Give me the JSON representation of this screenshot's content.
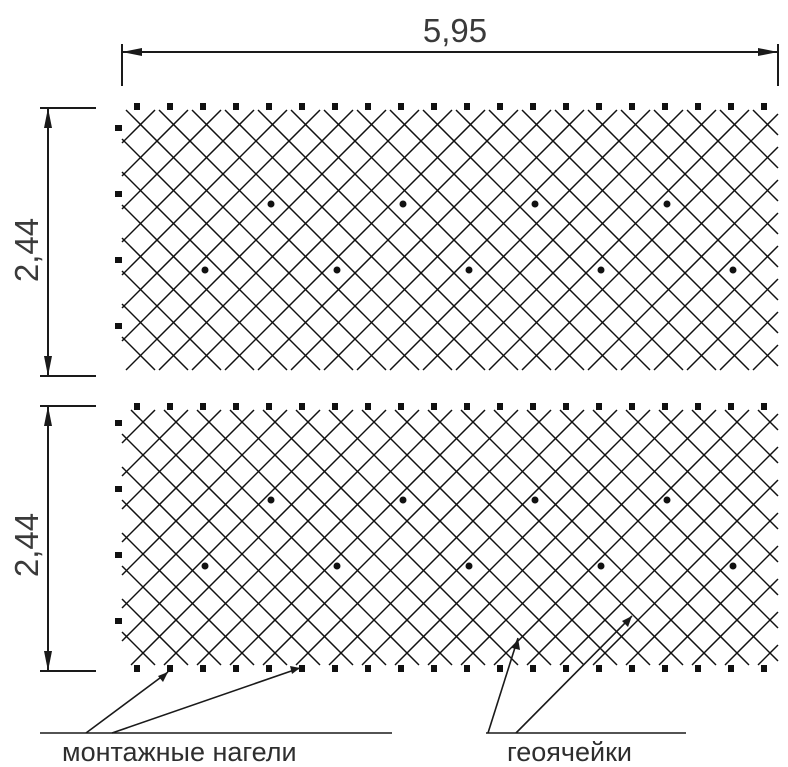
{
  "dimensions": {
    "width_label": "5,95",
    "height_label_top": "2,44",
    "height_label_bottom": "2,44"
  },
  "labels": {
    "anchors": "монтажные нагели",
    "cells": "геоячейки"
  },
  "colors": {
    "line": "#111111",
    "text": "#3a3a3a"
  }
}
